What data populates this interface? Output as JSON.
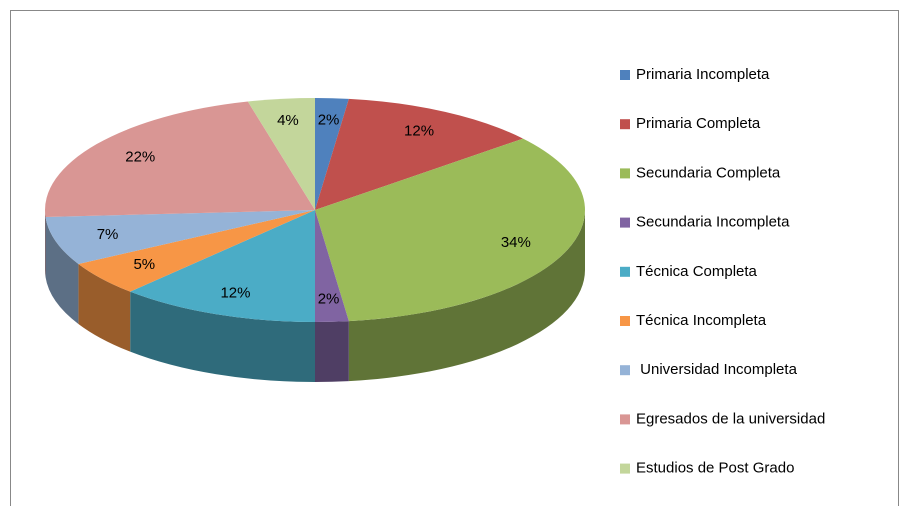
{
  "chart_data": {
    "type": "pie3d",
    "categories": [
      "Primaria Incompleta",
      "Primaria Completa",
      "Secundaria Completa",
      "Secundaria Incompleta",
      "Técnica Completa",
      "Técnica Incompleta",
      " Universidad Incompleta",
      "Egresados de la universidad",
      "Estudios de Post Grado"
    ],
    "values": [
      2,
      12,
      34,
      2,
      12,
      5,
      7,
      22,
      4
    ],
    "value_labels": [
      "2%",
      "12%",
      "34%",
      "2%",
      "12%",
      "5%",
      "7%",
      "22%",
      "4%"
    ],
    "colors": [
      "#4f81bd",
      "#c0504d",
      "#9bbb59",
      "#8064a2",
      "#4bacc6",
      "#f79646",
      "#95b3d7",
      "#d99694",
      "#c3d69b"
    ],
    "legend": "right"
  }
}
